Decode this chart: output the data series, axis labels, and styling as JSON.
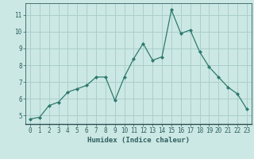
{
  "x": [
    0,
    1,
    2,
    3,
    4,
    5,
    6,
    7,
    8,
    9,
    10,
    11,
    12,
    13,
    14,
    15,
    16,
    17,
    18,
    19,
    20,
    21,
    22,
    23
  ],
  "y": [
    4.8,
    4.9,
    5.6,
    5.8,
    6.4,
    6.6,
    6.8,
    7.3,
    7.3,
    5.9,
    7.3,
    8.4,
    9.3,
    8.3,
    8.5,
    11.3,
    9.9,
    10.1,
    8.8,
    7.9,
    7.3,
    6.7,
    6.3,
    5.4
  ],
  "xlabel": "Humidex (Indice chaleur)",
  "ylim": [
    4.5,
    11.7
  ],
  "xlim": [
    -0.5,
    23.5
  ],
  "yticks": [
    5,
    6,
    7,
    8,
    9,
    10,
    11
  ],
  "xticks": [
    0,
    1,
    2,
    3,
    4,
    5,
    6,
    7,
    8,
    9,
    10,
    11,
    12,
    13,
    14,
    15,
    16,
    17,
    18,
    19,
    20,
    21,
    22,
    23
  ],
  "line_color": "#2d7a6e",
  "marker": "D",
  "marker_size": 2.0,
  "bg_color": "#cce8e4",
  "grid_color": "#aacfcc",
  "tick_label_color": "#2d6060",
  "axis_label_color": "#2d6060",
  "label_fontsize": 6.5,
  "tick_fontsize": 5.5
}
